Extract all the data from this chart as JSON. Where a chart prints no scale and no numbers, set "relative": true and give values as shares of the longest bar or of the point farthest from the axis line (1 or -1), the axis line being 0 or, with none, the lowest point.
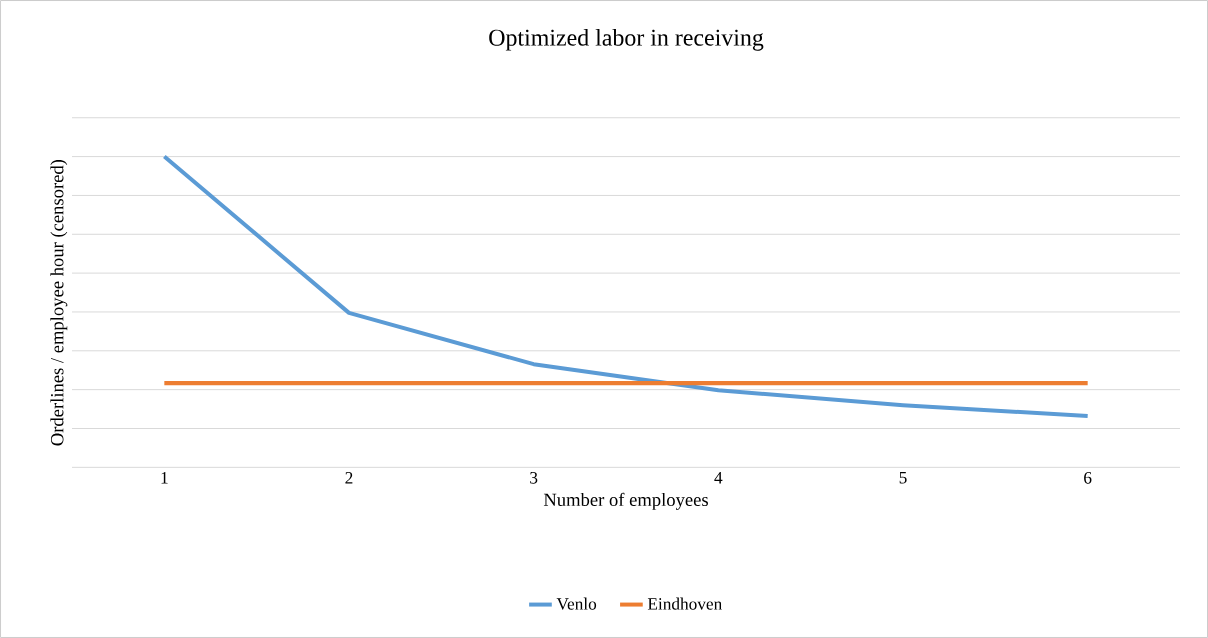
{
  "chart_data": {
    "type": "line",
    "title": "Optimized labor in receiving",
    "xlabel": "Number of employees",
    "ylabel": "Orderlines / employee hour (censored)",
    "categories": [
      "1",
      "2",
      "3",
      "4",
      "5",
      "6"
    ],
    "series": [
      {
        "name": "Venlo",
        "color": "#5b9bd5",
        "values": [
          1,
          0.497,
          0.332,
          0.248,
          0.2,
          0.165
        ]
      },
      {
        "name": "Eindhoven",
        "color": "#ed7d31",
        "values": [
          0.271,
          0.271,
          0.271,
          0.271,
          0.271,
          0.271
        ]
      }
    ],
    "relative": true,
    "grid": "y",
    "legend": "bottom",
    "marker": "none"
  }
}
